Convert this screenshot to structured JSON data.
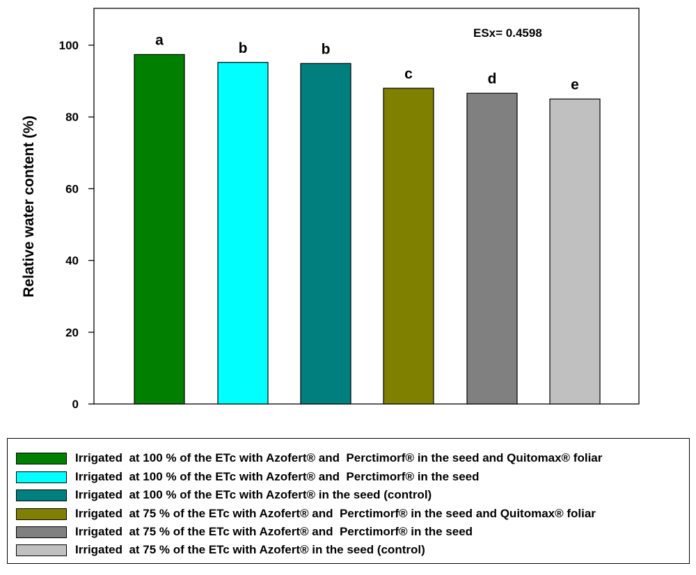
{
  "chart_data": {
    "type": "bar",
    "ylabel": "Relative water content (%)",
    "ylim": [
      0,
      110
    ],
    "yticks": [
      0,
      20,
      40,
      60,
      80,
      100
    ],
    "annotation": "ESx= 0.4598",
    "grid": false,
    "legend_position": "bottom",
    "series": [
      {
        "name": "Irrigated  at 100 % of the ETc with Azofert® and  Perctimorf® in the seed and Quitomax® foliar",
        "value": 97.4,
        "letter": "a",
        "color": "#007f00"
      },
      {
        "name": "Irrigated  at 100 % of the ETc with Azofert® and  Perctimorf® in the seed",
        "value": 95.2,
        "letter": "b",
        "color": "#00ffff"
      },
      {
        "name": "Irrigated  at 100 % of the ETc with Azofert® in the seed (control)",
        "value": 94.9,
        "letter": "b",
        "color": "#007f7f"
      },
      {
        "name": "Irrigated  at 75 % of the ETc with Azofert® and  Perctimorf® in the seed and Quitomax® foliar",
        "value": 88.0,
        "letter": "c",
        "color": "#7f7f00"
      },
      {
        "name": "Irrigated  at 75 % of the ETc with Azofert® and  Perctimorf® in the seed",
        "value": 86.6,
        "letter": "d",
        "color": "#808080"
      },
      {
        "name": "Irrigated  at 75 % of the ETc with Azofert® in the seed (control)",
        "value": 85.0,
        "letter": "e",
        "color": "#c0c0c0"
      }
    ]
  }
}
